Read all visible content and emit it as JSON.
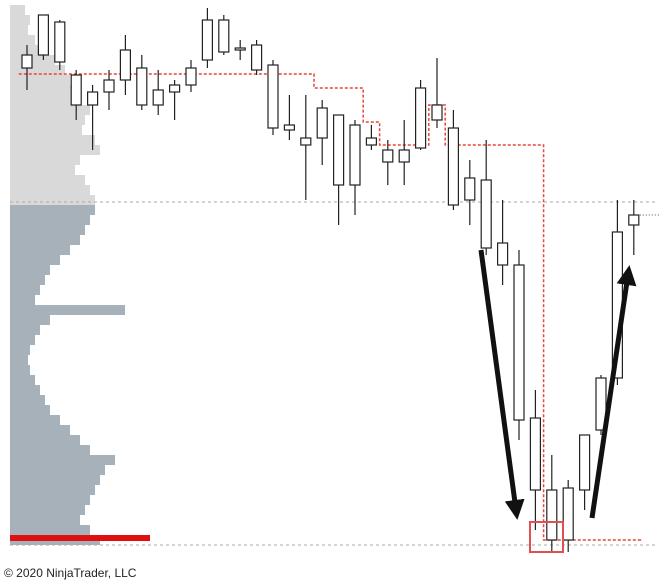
{
  "chart_data": {
    "type": "candlestick",
    "open": [
      477,
      490,
      483,
      440,
      440,
      453,
      465,
      440,
      440,
      453,
      460,
      485,
      493,
      495,
      475,
      417,
      415,
      400,
      407,
      360,
      360,
      400,
      383,
      383,
      397,
      425,
      340,
      345,
      297,
      280,
      125,
      55,
      5,
      5,
      55,
      115,
      167,
      320
    ],
    "close": [
      490,
      530,
      523,
      470,
      453,
      465,
      495,
      477,
      455,
      460,
      477,
      525,
      525,
      497,
      500,
      480,
      420,
      407,
      437,
      430,
      420,
      407,
      395,
      395,
      457,
      440,
      417,
      367,
      365,
      302,
      280,
      127,
      55,
      57,
      110,
      167,
      313,
      330
    ],
    "high": [
      500,
      530,
      525,
      475,
      460,
      475,
      510,
      490,
      475,
      465,
      485,
      537,
      530,
      505,
      505,
      485,
      450,
      450,
      445,
      430,
      425,
      420,
      405,
      425,
      465,
      487,
      435,
      385,
      405,
      345,
      295,
      155,
      90,
      65,
      110,
      170,
      345,
      345
    ],
    "low": [
      455,
      485,
      475,
      425,
      395,
      435,
      450,
      435,
      430,
      425,
      453,
      477,
      490,
      485,
      470,
      410,
      405,
      345,
      380,
      320,
      330,
      395,
      360,
      360,
      395,
      417,
      335,
      320,
      290,
      260,
      105,
      15,
      -7,
      -7,
      35,
      110,
      160,
      290
    ],
    "candle_color": "#ffffff",
    "wick_color": "#222222",
    "step": [
      471,
      471,
      471,
      471,
      471,
      471,
      471,
      471,
      471,
      471,
      471,
      471,
      471,
      471,
      471,
      471,
      471,
      471,
      457,
      457,
      457,
      423,
      400,
      400,
      400,
      440,
      400,
      400,
      400,
      400,
      400,
      400,
      5,
      5,
      5,
      5,
      5,
      5
    ],
    "step_color": "#e8453c",
    "profile": [
      {
        "color": "#d9d9d9",
        "values": [
          15,
          20,
          18,
          25,
          30,
          45,
          55,
          60,
          65,
          70,
          80,
          75,
          72,
          85,
          90,
          70,
          65,
          75,
          80,
          85
        ]
      },
      {
        "color": "#a7b1b9",
        "values": [
          85,
          80,
          75,
          70,
          60,
          50,
          40,
          35,
          30,
          25,
          115,
          40,
          30,
          25,
          20,
          18,
          20,
          25,
          30,
          35,
          40,
          50,
          60,
          70,
          80,
          105,
          95,
          90,
          85,
          80,
          75,
          70,
          80,
          90
        ]
      }
    ],
    "poc": {
      "value": 140,
      "color": "#e01010"
    },
    "levels": [
      343,
      0
    ],
    "ylim": [
      0,
      540
    ],
    "copyright": "© 2020 NinjaTrader, LLC"
  }
}
